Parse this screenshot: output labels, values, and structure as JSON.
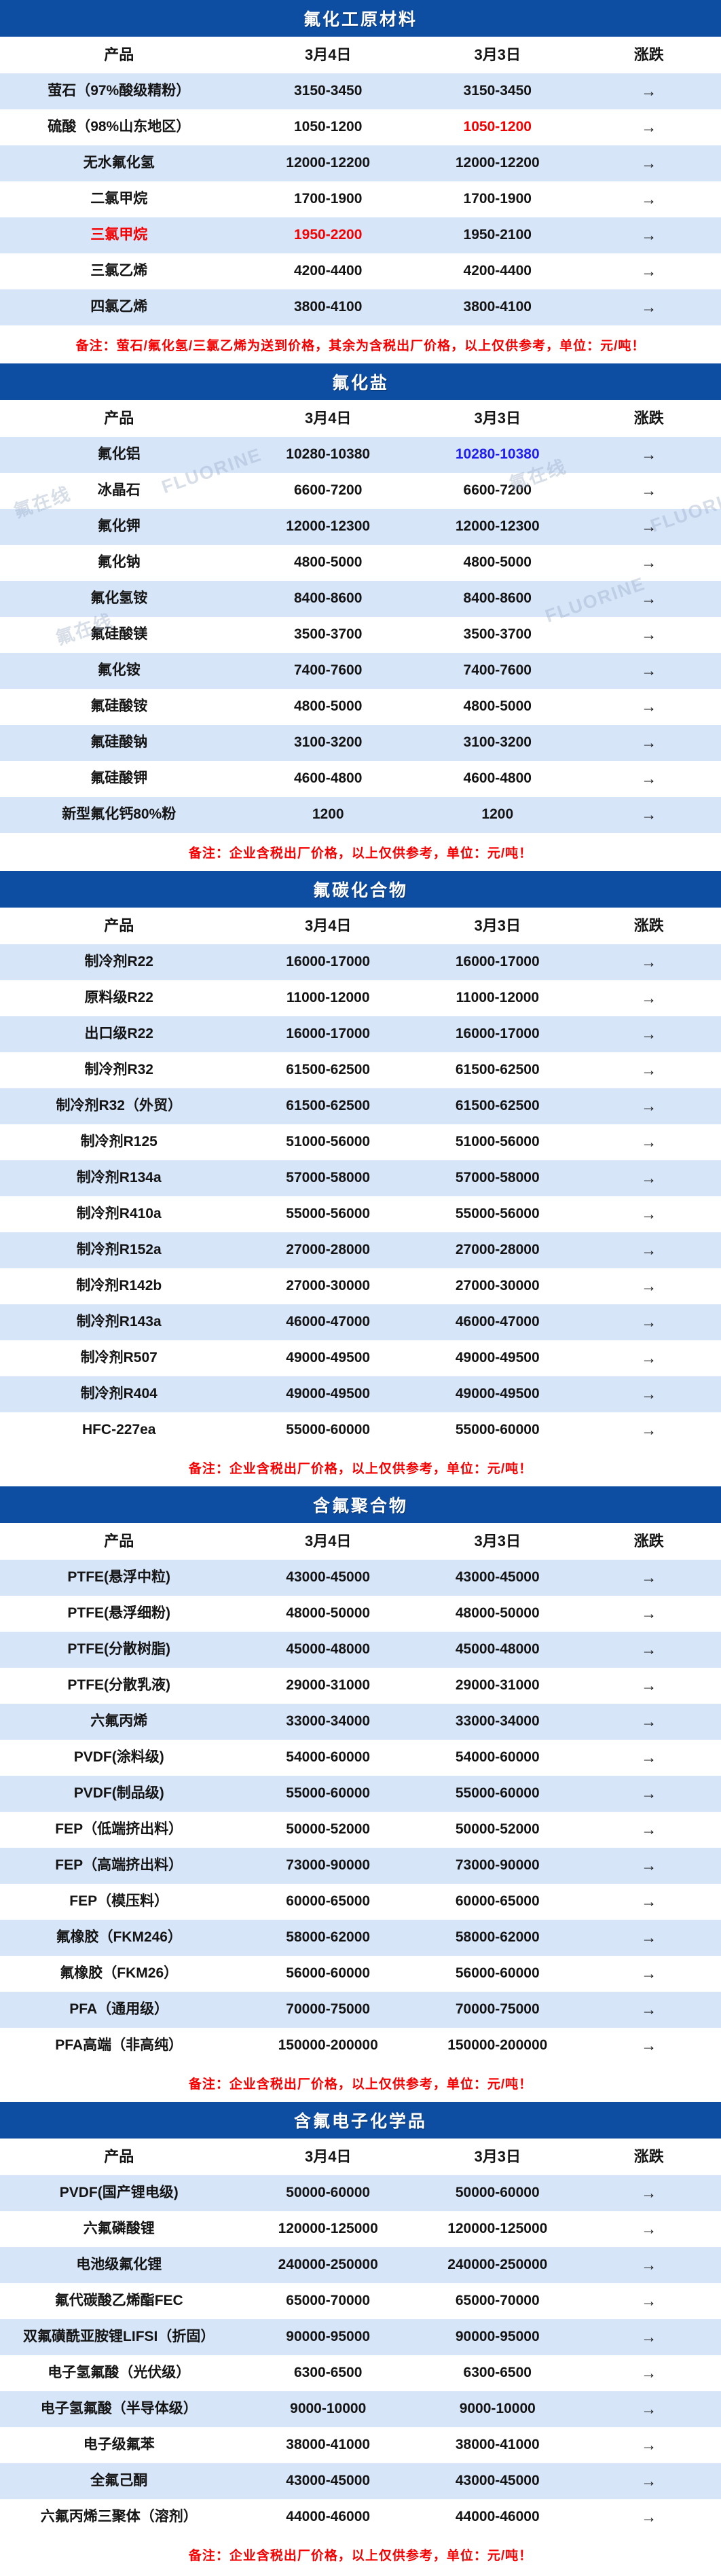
{
  "columns": [
    "产品",
    "3月4日",
    "3月3日",
    "涨跌"
  ],
  "arrow": "→",
  "colors": {
    "title_bg": "#0D4DA2",
    "row_alt_bg": "#D7E5F9",
    "highlight_red": "#F40000",
    "highlight_blue": "#1E1EF0"
  },
  "watermark": {
    "texts": [
      "氟在线",
      "FLUORINE"
    ]
  },
  "sections": [
    {
      "title": "氟化工原材料",
      "note": "备注：萤石/氟化氢/三氯乙烯为送到价格，其余为含税出厂价格，以上仅供参考，单位：元/吨！",
      "rows": [
        {
          "product": "萤石（97%酸级精粉）",
          "d1": "3150-3450",
          "d2": "3150-3450"
        },
        {
          "product": "硫酸（98%山东地区）",
          "d1": "1050-1200",
          "d2": "1050-1200",
          "d2_color": "red"
        },
        {
          "product": "无水氟化氢",
          "d1": "12000-12200",
          "d2": "12000-12200"
        },
        {
          "product": "二氯甲烷",
          "d1": "1700-1900",
          "d2": "1700-1900"
        },
        {
          "product": "三氯甲烷",
          "product_color": "red",
          "d1": "1950-2200",
          "d1_color": "red",
          "d2": "1950-2100"
        },
        {
          "product": "三氯乙烯",
          "d1": "4200-4400",
          "d2": "4200-4400"
        },
        {
          "product": "四氯乙烯",
          "d1": "3800-4100",
          "d2": "3800-4100"
        }
      ]
    },
    {
      "title": "氟化盐",
      "note": "备注：企业含税出厂价格，以上仅供参考，单位：元/吨！",
      "rows": [
        {
          "product": "氟化铝",
          "d1": "10280-10380",
          "d2": "10280-10380",
          "d2_color": "blue"
        },
        {
          "product": "冰晶石",
          "d1": "6600-7200",
          "d2": "6600-7200"
        },
        {
          "product": "氟化钾",
          "d1": "12000-12300",
          "d2": "12000-12300"
        },
        {
          "product": "氟化钠",
          "d1": "4800-5000",
          "d2": "4800-5000"
        },
        {
          "product": "氟化氢铵",
          "d1": "8400-8600",
          "d2": "8400-8600"
        },
        {
          "product": "氟硅酸镁",
          "d1": "3500-3700",
          "d2": "3500-3700"
        },
        {
          "product": "氟化铵",
          "d1": "7400-7600",
          "d2": "7400-7600"
        },
        {
          "product": "氟硅酸铵",
          "d1": "4800-5000",
          "d2": "4800-5000"
        },
        {
          "product": "氟硅酸钠",
          "d1": "3100-3200",
          "d2": "3100-3200"
        },
        {
          "product": "氟硅酸钾",
          "d1": "4600-4800",
          "d2": "4600-4800"
        },
        {
          "product": "新型氟化钙80%粉",
          "d1": "1200",
          "d2": "1200"
        }
      ]
    },
    {
      "title": "氟碳化合物",
      "note": "备注：企业含税出厂价格，以上仅供参考，单位：元/吨！",
      "rows": [
        {
          "product": "制冷剂R22",
          "d1": "16000-17000",
          "d2": "16000-17000"
        },
        {
          "product": "原料级R22",
          "d1": "11000-12000",
          "d2": "11000-12000"
        },
        {
          "product": "出口级R22",
          "d1": "16000-17000",
          "d2": "16000-17000"
        },
        {
          "product": "制冷剂R32",
          "d1": "61500-62500",
          "d2": "61500-62500"
        },
        {
          "product": "制冷剂R32（外贸）",
          "d1": "61500-62500",
          "d2": "61500-62500"
        },
        {
          "product": "制冷剂R125",
          "d1": "51000-56000",
          "d2": "51000-56000"
        },
        {
          "product": "制冷剂R134a",
          "d1": "57000-58000",
          "d2": "57000-58000"
        },
        {
          "product": "制冷剂R410a",
          "d1": "55000-56000",
          "d2": "55000-56000"
        },
        {
          "product": "制冷剂R152a",
          "d1": "27000-28000",
          "d2": "27000-28000"
        },
        {
          "product": "制冷剂R142b",
          "d1": "27000-30000",
          "d2": "27000-30000"
        },
        {
          "product": "制冷剂R143a",
          "d1": "46000-47000",
          "d2": "46000-47000"
        },
        {
          "product": "制冷剂R507",
          "d1": "49000-49500",
          "d2": "49000-49500"
        },
        {
          "product": "制冷剂R404",
          "d1": "49000-49500",
          "d2": "49000-49500"
        },
        {
          "product": "HFC-227ea",
          "d1": "55000-60000",
          "d2": "55000-60000"
        }
      ]
    },
    {
      "title": "含氟聚合物",
      "note": "备注：企业含税出厂价格，以上仅供参考，单位：元/吨！",
      "rows": [
        {
          "product": "PTFE(悬浮中粒)",
          "d1": "43000-45000",
          "d2": "43000-45000"
        },
        {
          "product": "PTFE(悬浮细粉)",
          "d1": "48000-50000",
          "d2": "48000-50000"
        },
        {
          "product": "PTFE(分散树脂)",
          "d1": "45000-48000",
          "d2": "45000-48000"
        },
        {
          "product": "PTFE(分散乳液)",
          "d1": "29000-31000",
          "d2": "29000-31000"
        },
        {
          "product": "六氟丙烯",
          "d1": "33000-34000",
          "d2": "33000-34000"
        },
        {
          "product": "PVDF(涂料级)",
          "d1": "54000-60000",
          "d2": "54000-60000"
        },
        {
          "product": "PVDF(制品级)",
          "d1": "55000-60000",
          "d2": "55000-60000"
        },
        {
          "product": "FEP（低端挤出料）",
          "d1": "50000-52000",
          "d2": "50000-52000"
        },
        {
          "product": "FEP（高端挤出料）",
          "d1": "73000-90000",
          "d2": "73000-90000"
        },
        {
          "product": "FEP（模压料）",
          "d1": "60000-65000",
          "d2": "60000-65000"
        },
        {
          "product": "氟橡胶（FKM246）",
          "d1": "58000-62000",
          "d2": "58000-62000"
        },
        {
          "product": "氟橡胶（FKM26）",
          "d1": "56000-60000",
          "d2": "56000-60000"
        },
        {
          "product": "PFA（通用级）",
          "d1": "70000-75000",
          "d2": "70000-75000"
        },
        {
          "product": "PFA高端（非高纯）",
          "d1": "150000-200000",
          "d2": "150000-200000"
        }
      ]
    },
    {
      "title": "含氟电子化学品",
      "note": "备注：企业含税出厂价格，以上仅供参考，单位：元/吨！",
      "rows": [
        {
          "product": "PVDF(国产锂电级)",
          "d1": "50000-60000",
          "d2": "50000-60000"
        },
        {
          "product": "六氟磷酸锂",
          "d1": "120000-125000",
          "d2": "120000-125000"
        },
        {
          "product": "电池级氟化锂",
          "d1": "240000-250000",
          "d2": "240000-250000"
        },
        {
          "product": "氟代碳酸乙烯酯FEC",
          "d1": "65000-70000",
          "d2": "65000-70000"
        },
        {
          "product": "双氟磺酰亚胺锂LIFSI（折固）",
          "d1": "90000-95000",
          "d2": "90000-95000"
        },
        {
          "product": "电子氢氟酸（光伏级）",
          "d1": "6300-6500",
          "d2": "6300-6500"
        },
        {
          "product": "电子氢氟酸（半导体级）",
          "d1": "9000-10000",
          "d2": "9000-10000"
        },
        {
          "product": "电子级氟苯",
          "d1": "38000-41000",
          "d2": "38000-41000"
        },
        {
          "product": "全氟己酮",
          "d1": "43000-45000",
          "d2": "43000-45000"
        },
        {
          "product": "六氟丙烯三聚体（溶剂）",
          "d1": "44000-46000",
          "d2": "44000-46000"
        }
      ]
    }
  ]
}
